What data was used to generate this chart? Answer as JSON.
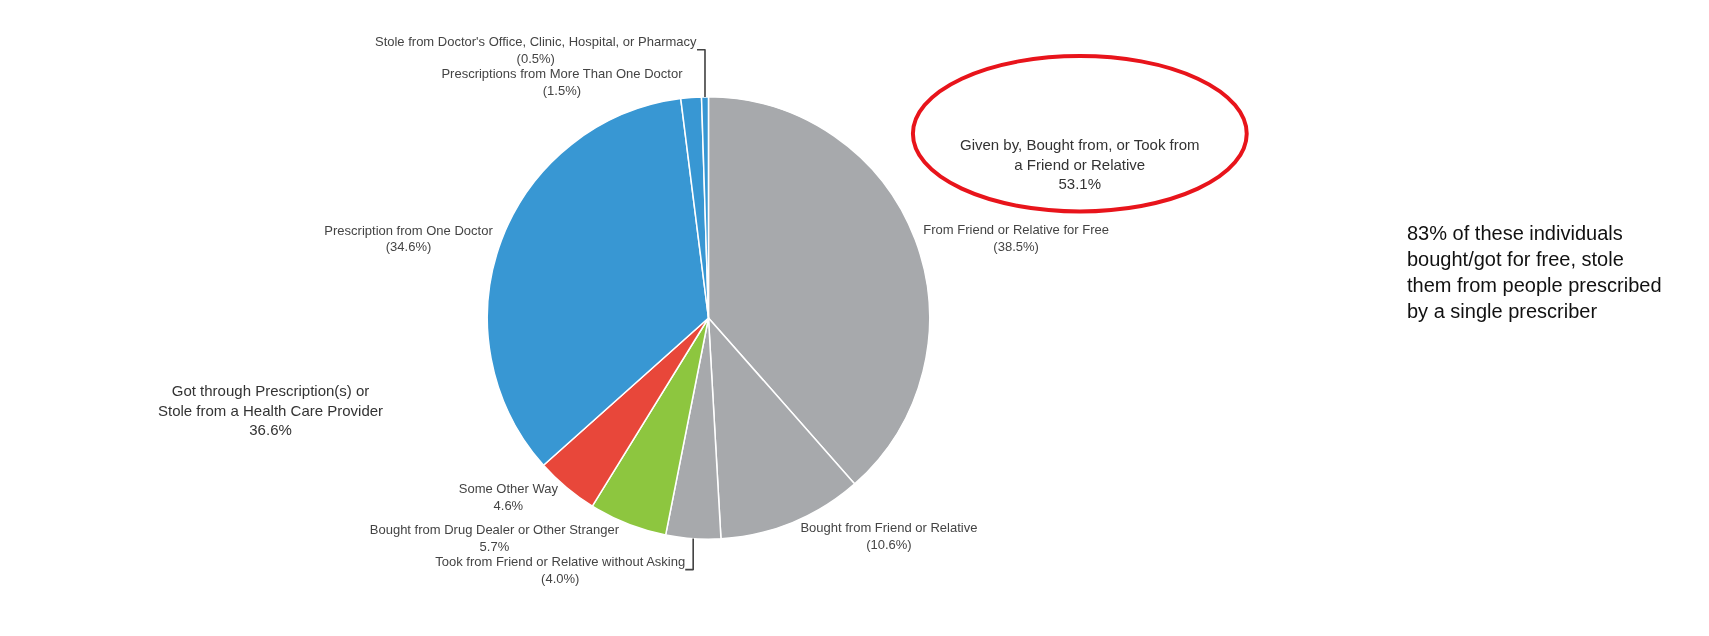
{
  "chart_data": {
    "type": "pie",
    "categories": [
      "From Friend or Relative for Free",
      "Bought from Friend or Relative",
      "Took from Friend or Relative without Asking",
      "Bought from Drug Dealer or Other Stranger",
      "Some Other Way",
      "Prescription from One Doctor",
      "Prescriptions from More Than One Doctor",
      "Stole from Doctor's Office, Clinic, Hospital, or Pharmacy"
    ],
    "values": [
      38.5,
      10.6,
      4.0,
      5.7,
      4.6,
      34.6,
      1.5,
      0.5
    ],
    "value_labels": [
      "(38.5%)",
      "(10.6%)",
      "(4.0%)",
      "5.7%",
      "4.6%",
      "(34.6%)",
      "(1.5%)",
      "(0.5%)"
    ],
    "colors": [
      "#a7a9ac",
      "#a7a9ac",
      "#a7a9ac",
      "#8dc63f",
      "#e8473a",
      "#3897d3",
      "#3897d3",
      "#3897d3"
    ],
    "annotations": [
      "Given by, Bought from, or Took from\na Friend or Relative\n53.1%",
      "Got through Prescription(s) or\nStole from a Health Care Provider\n36.6%",
      "83% of these individuals\nbought/got for free, stole\nthem from people prescribed\nby a single prescriber"
    ],
    "legend": false
  }
}
